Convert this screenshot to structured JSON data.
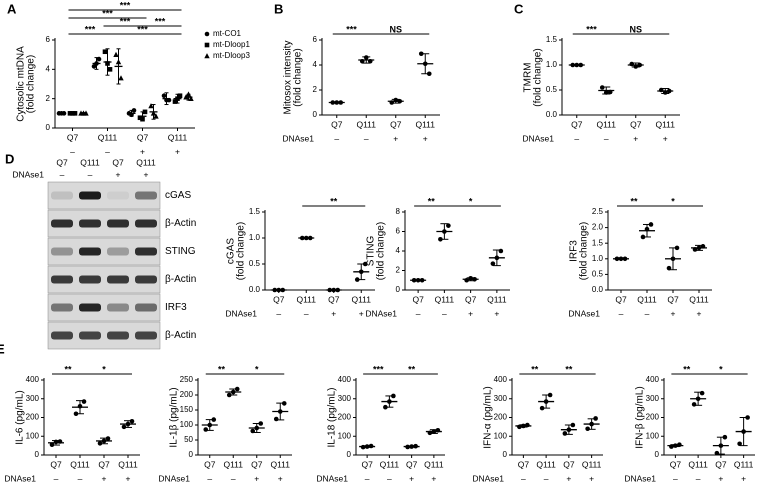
{
  "chart_data": [
    {
      "type": "dot",
      "panel": "A",
      "ylabel": [
        "Cytosolic mtDNA",
        "(fold change)"
      ],
      "categories": [
        "Q7",
        "Q111",
        "Q7",
        "Q111"
      ],
      "treatment": {
        "values": [
          "–",
          "–",
          "+",
          "+"
        ]
      },
      "ylim": [
        0,
        6
      ],
      "yticks": [
        0,
        2,
        4,
        6
      ],
      "legend": "upper right",
      "series": [
        {
          "name": "mt-CO1",
          "marker": "circle",
          "color": "#000000",
          "values": [
            1,
            4.4,
            1.0,
            2.0
          ],
          "errors": [
            0.05,
            0.4,
            0.2,
            0.4
          ],
          "points": [
            [
              1,
              1,
              1
            ],
            [
              4.2,
              4.4,
              4.7
            ],
            [
              1.0,
              0.9,
              1.2
            ],
            [
              2.2,
              1.9,
              1.9
            ]
          ]
        },
        {
          "name": "mt-Dloop1",
          "marker": "square",
          "color": "#000000",
          "values": [
            1,
            4.5,
            0.8,
            2.0
          ],
          "errors": [
            0.05,
            0.9,
            0.3,
            0.3
          ],
          "points": [
            [
              1,
              1,
              1
            ],
            [
              5.2,
              4.4,
              4.0
            ],
            [
              0.7,
              0.6,
              1.1
            ],
            [
              1.8,
              2.0,
              2.2
            ]
          ]
        },
        {
          "name": "mt-Dloop3",
          "marker": "triangle",
          "color": "#000000",
          "values": [
            1,
            4.2,
            1.1,
            2.1
          ],
          "errors": [
            0.05,
            1.2,
            0.5,
            0.2
          ],
          "points": [
            [
              1,
              1,
              1
            ],
            [
              5.0,
              4.5,
              3.4
            ],
            [
              1.5,
              1.0,
              0.8
            ],
            [
              2.1,
              2.3,
              2.0
            ]
          ]
        }
      ],
      "brackets": [
        {
          "pair": [
            0,
            1
          ],
          "label": "***"
        },
        {
          "pair": [
            1,
            3
          ],
          "label": "***"
        },
        {
          "pair": [
            1,
            2
          ],
          "label": "***"
        },
        {
          "pair": [
            2,
            3
          ],
          "label": "***"
        },
        {
          "pair": [
            0,
            2
          ],
          "label": "***"
        },
        {
          "pair": [
            0,
            3
          ],
          "label": "***"
        }
      ]
    },
    {
      "type": "dot",
      "panel": "B",
      "ylabel": [
        "Mitosox intensity",
        "(fold change)"
      ],
      "categories": [
        "Q7",
        "Q111",
        "Q7",
        "Q111"
      ],
      "treatment": {
        "name": "DNAse1",
        "values": [
          "–",
          "–",
          "+",
          "+"
        ]
      },
      "ylim": [
        0,
        6
      ],
      "yticks": [
        0,
        2,
        4,
        6
      ],
      "values": [
        1,
        4.4,
        1.1,
        4.1
      ],
      "errors": [
        0.05,
        0.25,
        0.15,
        0.8
      ],
      "points": [
        [
          1,
          1,
          1
        ],
        [
          4.3,
          4.6,
          4.3
        ],
        [
          1.0,
          1.2,
          1.1
        ],
        [
          4.9,
          4.1,
          3.3
        ]
      ],
      "brackets": [
        {
          "pair": [
            0,
            1
          ],
          "label": "***"
        },
        {
          "pair": [
            1,
            3
          ],
          "label": "NS"
        }
      ]
    },
    {
      "type": "dot",
      "panel": "C",
      "ylabel": [
        "TMRM",
        "(fold change)"
      ],
      "categories": [
        "Q7",
        "Q111",
        "Q7",
        "Q111"
      ],
      "treatment": {
        "name": "DNAse1",
        "values": [
          "–",
          "–",
          "+",
          "+"
        ]
      },
      "ylim": [
        0,
        1.5
      ],
      "yticks": [
        {
          "value": 0,
          "label": "0.0"
        },
        {
          "value": 0.5,
          "label": "0.5"
        },
        {
          "value": 1,
          "label": "1.0"
        },
        {
          "value": 1.5,
          "label": "1.5"
        }
      ],
      "values": [
        1,
        0.49,
        1.0,
        0.48
      ],
      "errors": [
        0.01,
        0.07,
        0.04,
        0.05
      ],
      "points": [
        [
          1,
          1,
          1
        ],
        [
          0.55,
          0.45,
          0.46
        ],
        [
          1.02,
          0.97,
          1.0
        ],
        [
          0.5,
          0.45,
          0.48
        ]
      ],
      "brackets": [
        {
          "pair": [
            0,
            1
          ],
          "label": "***"
        },
        {
          "pair": [
            1,
            3
          ],
          "label": "NS"
        }
      ]
    },
    {
      "type": "dot",
      "ylabel": [
        "cGAS",
        "(fold change)"
      ],
      "categories": [
        "Q7",
        "Q111",
        "Q7",
        "Q111"
      ],
      "treatment": {
        "name": "DNAse1",
        "values": [
          "–",
          "–",
          "+",
          "+"
        ]
      },
      "ylim": [
        0,
        1.5
      ],
      "yticks": [
        {
          "value": 0,
          "label": "0.0"
        },
        {
          "value": 0.5,
          "label": "0.5"
        },
        {
          "value": 1,
          "label": "1.0"
        },
        {
          "value": 1.5,
          "label": "1.5"
        }
      ],
      "values": [
        0,
        1,
        0,
        0.35
      ],
      "errors": [
        0.01,
        0.01,
        0.01,
        0.15
      ],
      "points": [
        [
          0,
          0,
          0
        ],
        [
          1,
          1,
          1
        ],
        [
          0,
          0,
          0
        ],
        [
          0.2,
          0.35,
          0.5
        ]
      ],
      "brackets": [
        {
          "pair": [
            1,
            3
          ],
          "label": "**"
        }
      ]
    },
    {
      "type": "dot",
      "ylabel": [
        "STING",
        "(fold change)"
      ],
      "categories": [
        "Q7",
        "Q111",
        "Q7",
        "Q111"
      ],
      "treatment": {
        "name": "DNAse1",
        "values": [
          "–",
          "–",
          "+",
          "+"
        ]
      },
      "ylim": [
        0,
        8
      ],
      "yticks": [
        0,
        2,
        4,
        6,
        8
      ],
      "values": [
        1,
        6,
        1.1,
        3.3
      ],
      "errors": [
        0.02,
        0.8,
        0.15,
        0.8
      ],
      "points": [
        [
          1,
          1,
          1
        ],
        [
          5.2,
          6,
          6.6
        ],
        [
          1,
          1.2,
          1.1
        ],
        [
          2.7,
          3.3,
          4
        ]
      ],
      "brackets": [
        {
          "pair": [
            0,
            1
          ],
          "label": "**"
        },
        {
          "pair": [
            1,
            3
          ],
          "label": "*"
        }
      ]
    },
    {
      "type": "dot",
      "ylabel": [
        "IRF3",
        "(fold change)"
      ],
      "categories": [
        "Q7",
        "Q111",
        "Q7",
        "Q111"
      ],
      "treatment": {
        "name": "DNAse1",
        "values": [
          "–",
          "–",
          "+",
          "+"
        ]
      },
      "ylim": [
        0,
        2.5
      ],
      "yticks": [
        {
          "value": 0,
          "label": "0.0"
        },
        {
          "value": 0.5,
          "label": "0.5"
        },
        {
          "value": 1,
          "label": "1.0"
        },
        {
          "value": 1.5,
          "label": "1.5"
        },
        {
          "value": 2,
          "label": "2.0"
        },
        {
          "value": 2.5,
          "label": "2.5"
        }
      ],
      "values": [
        1,
        1.9,
        1.0,
        1.35
      ],
      "errors": [
        0.01,
        0.2,
        0.35,
        0.08
      ],
      "points": [
        [
          1,
          1,
          1
        ],
        [
          1.7,
          1.95,
          2.1
        ],
        [
          0.7,
          1,
          1.35
        ],
        [
          1.3,
          1.35,
          1.4
        ]
      ],
      "brackets": [
        {
          "pair": [
            0,
            1
          ],
          "label": "**"
        },
        {
          "pair": [
            1,
            3
          ],
          "label": "*"
        }
      ]
    },
    {
      "type": "dot",
      "panel": "E",
      "ylabel": [
        "IL-6 (pg/mL)"
      ],
      "categories": [
        "Q7",
        "Q111",
        "Q7",
        "Q111"
      ],
      "treatment": {
        "name": "DNAse1",
        "values": [
          "–",
          "–",
          "+",
          "+"
        ]
      },
      "ylim": [
        0,
        400
      ],
      "yticks": [
        0,
        100,
        200,
        300,
        400
      ],
      "values": [
        65,
        255,
        75,
        165
      ],
      "errors": [
        12,
        35,
        15,
        18
      ],
      "points": [
        [
          55,
          70,
          72
        ],
        [
          220,
          260,
          285
        ],
        [
          62,
          75,
          88
        ],
        [
          150,
          165,
          180
        ]
      ],
      "brackets": [
        {
          "pair": [
            0,
            1
          ],
          "label": "**"
        },
        {
          "pair": [
            1,
            3
          ],
          "label": "*"
        }
      ]
    },
    {
      "type": "dot",
      "ylabel": [
        "IL-1β (pg/mL)"
      ],
      "categories": [
        "Q7",
        "Q111",
        "Q7",
        "Q111"
      ],
      "treatment": {
        "name": "DNAse1",
        "values": [
          "–",
          "–",
          "+",
          "+"
        ]
      },
      "ylim": [
        0,
        250
      ],
      "yticks": [
        0,
        50,
        100,
        150,
        200,
        250
      ],
      "values": [
        100,
        210,
        90,
        145
      ],
      "errors": [
        18,
        10,
        15,
        28
      ],
      "points": [
        [
          85,
          100,
          118
        ],
        [
          200,
          210,
          220
        ],
        [
          80,
          90,
          105
        ],
        [
          120,
          145,
          172
        ]
      ],
      "brackets": [
        {
          "pair": [
            0,
            1
          ],
          "label": "**"
        },
        {
          "pair": [
            1,
            3
          ],
          "label": "*"
        }
      ]
    },
    {
      "type": "dot",
      "ylabel": [
        "IL-18 (pg/mL)"
      ],
      "categories": [
        "Q7",
        "Q111",
        "Q7",
        "Q111"
      ],
      "treatment": {
        "name": "DNAse1",
        "values": [
          "–",
          "–",
          "+",
          "+"
        ]
      },
      "ylim": [
        0,
        400
      ],
      "yticks": [
        0,
        100,
        200,
        300,
        400
      ],
      "values": [
        45,
        285,
        45,
        125
      ],
      "errors": [
        4,
        30,
        3,
        10
      ],
      "points": [
        [
          42,
          45,
          48
        ],
        [
          255,
          285,
          315
        ],
        [
          43,
          45,
          47
        ],
        [
          118,
          125,
          132
        ]
      ],
      "brackets": [
        {
          "pair": [
            0,
            1
          ],
          "label": "***"
        },
        {
          "pair": [
            1,
            3
          ],
          "label": "**"
        }
      ]
    },
    {
      "type": "dot",
      "ylabel": [
        "IFN-α (pg/mL)"
      ],
      "categories": [
        "Q7",
        "Q111",
        "Q7",
        "Q111"
      ],
      "treatment": {
        "name": "DNAse1",
        "values": [
          "–",
          "–",
          "+",
          "+"
        ]
      },
      "ylim": [
        0,
        400
      ],
      "yticks": [
        0,
        100,
        200,
        300,
        400
      ],
      "values": [
        155,
        285,
        135,
        165
      ],
      "errors": [
        6,
        35,
        25,
        28
      ],
      "points": [
        [
          150,
          155,
          160
        ],
        [
          250,
          285,
          320
        ],
        [
          115,
          135,
          160
        ],
        [
          140,
          165,
          195
        ]
      ],
      "brackets": [
        {
          "pair": [
            0,
            1
          ],
          "label": "**"
        },
        {
          "pair": [
            1,
            3
          ],
          "label": "**"
        }
      ]
    },
    {
      "type": "dot",
      "ylabel": [
        "IFN-β (pg/mL)"
      ],
      "categories": [
        "Q7",
        "Q111",
        "Q7",
        "Q111"
      ],
      "treatment": {
        "name": "DNAse1",
        "values": [
          "–",
          "–",
          "+",
          "+"
        ]
      },
      "ylim": [
        0,
        400
      ],
      "yticks": [
        0,
        100,
        200,
        300,
        400
      ],
      "values": [
        50,
        300,
        50,
        125
      ],
      "errors": [
        5,
        35,
        45,
        75
      ],
      "points": [
        [
          45,
          50,
          55
        ],
        [
          270,
          300,
          330
        ],
        [
          10,
          50,
          95
        ],
        [
          60,
          125,
          200
        ]
      ],
      "brackets": [
        {
          "pair": [
            0,
            1
          ],
          "label": "**"
        },
        {
          "pair": [
            1,
            3
          ],
          "label": "*"
        }
      ]
    }
  ],
  "blot": {
    "panel": "D",
    "lanes": [
      "Q7",
      "Q111",
      "Q7",
      "Q111"
    ],
    "treatment": {
      "name": "DNAse1",
      "values": [
        "–",
        "–",
        "+",
        "+"
      ]
    },
    "bands": [
      "cGAS",
      "β-Actin",
      "STING",
      "β-Actin",
      "IRF3",
      "β-Actin"
    ]
  }
}
